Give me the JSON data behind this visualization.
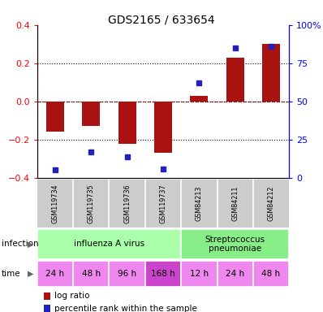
{
  "title": "GDS2165 / 633654",
  "samples": [
    "GSM119734",
    "GSM119735",
    "GSM119736",
    "GSM119737",
    "GSM84213",
    "GSM84211",
    "GSM84212"
  ],
  "log_ratio": [
    -0.16,
    -0.13,
    -0.22,
    -0.27,
    0.03,
    0.23,
    0.3
  ],
  "percentile_rank": [
    5,
    17,
    14,
    6,
    62,
    85,
    86
  ],
  "infection_groups": [
    {
      "label": "influenza A virus",
      "start": 0,
      "end": 4,
      "color": "#aaffaa"
    },
    {
      "label": "Streptococcus\npneumoniae",
      "start": 4,
      "end": 7,
      "color": "#88ee88"
    }
  ],
  "time_labels": [
    "24 h",
    "48 h",
    "96 h",
    "168 h",
    "12 h",
    "24 h",
    "48 h"
  ],
  "time_colors": [
    "#ee88ee",
    "#ee88ee",
    "#ee88ee",
    "#cc44cc",
    "#ee88ee",
    "#ee88ee",
    "#ee88ee"
  ],
  "bar_color": "#aa1111",
  "dot_color": "#2222bb",
  "ylim": [
    -0.4,
    0.4
  ],
  "y2lim": [
    0,
    100
  ],
  "y_ticks": [
    -0.4,
    -0.2,
    0.0,
    0.2,
    0.4
  ],
  "y2_ticks": [
    0,
    25,
    50,
    75,
    100
  ],
  "background_color": "#ffffff"
}
